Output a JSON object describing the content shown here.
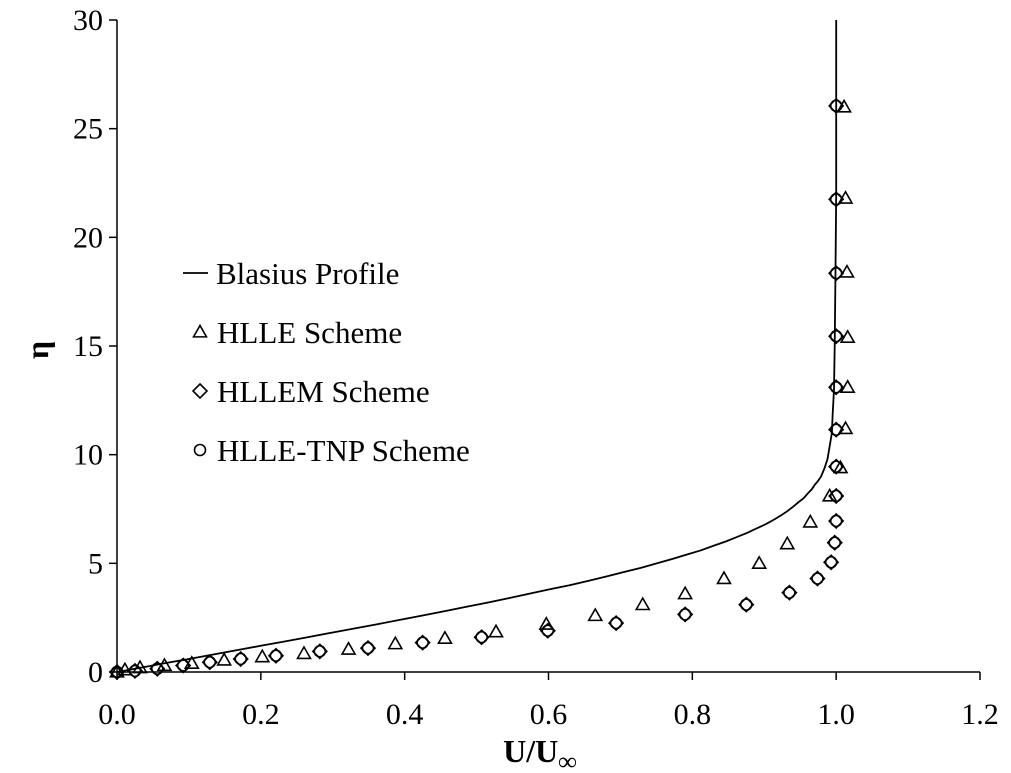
{
  "chart_data": {
    "type": "scatter",
    "title": "",
    "xlabel": "U/U",
    "xlabel_subscript": "∞",
    "ylabel": "η",
    "xlim": [
      0,
      1.2
    ],
    "ylim": [
      0,
      30
    ],
    "xticks": [
      0.0,
      0.2,
      0.4,
      0.6,
      0.8,
      1.0,
      1.2
    ],
    "yticks": [
      0,
      5,
      10,
      15,
      20,
      25,
      30
    ],
    "xtick_labels": [
      "0.0",
      "0.2",
      "0.4",
      "0.6",
      "0.8",
      "1.0",
      "1.2"
    ],
    "ytick_labels": [
      "0",
      "5",
      "10",
      "15",
      "20",
      "25",
      "30"
    ],
    "grid": false,
    "legend_position": "center-left",
    "series": [
      {
        "name": "Blasius Profile",
        "style": "line",
        "x": [
          0,
          0.033,
          0.066,
          0.1,
          0.133,
          0.166,
          0.199,
          0.232,
          0.265,
          0.297,
          0.33,
          0.362,
          0.394,
          0.425,
          0.456,
          0.486,
          0.516,
          0.545,
          0.573,
          0.601,
          0.63,
          0.656,
          0.681,
          0.705,
          0.729,
          0.751,
          0.772,
          0.792,
          0.812,
          0.829,
          0.846,
          0.861,
          0.876,
          0.889,
          0.902,
          0.913,
          0.923,
          0.932,
          0.94,
          0.947,
          0.955,
          0.96,
          0.966,
          0.97,
          0.975,
          0.979,
          0.984,
          0.988,
          0.991,
          0.994,
          0.995,
          0.997,
          0.998,
          0.999,
          1.0,
          1.0
        ],
        "y": [
          0,
          0.2,
          0.4,
          0.6,
          0.8,
          1.0,
          1.2,
          1.4,
          1.6,
          1.8,
          2.0,
          2.2,
          2.4,
          2.6,
          2.8,
          3.0,
          3.2,
          3.4,
          3.6,
          3.8,
          4.0,
          4.2,
          4.4,
          4.6,
          4.8,
          5.0,
          5.2,
          5.4,
          5.6,
          5.8,
          6.0,
          6.2,
          6.4,
          6.6,
          6.8,
          7.0,
          7.2,
          7.4,
          7.6,
          7.8,
          8.0,
          8.2,
          8.4,
          8.6,
          8.8,
          9.0,
          9.4,
          9.8,
          10.4,
          11.0,
          11.8,
          13.0,
          15.0,
          18.0,
          22.0,
          30.0
        ],
        "x_by_eta": true
      },
      {
        "name": "HLLE Scheme",
        "marker": "triangle",
        "x": [
          0.0,
          0.011,
          0.032,
          0.066,
          0.104,
          0.149,
          0.202,
          0.26,
          0.322,
          0.387,
          0.456,
          0.527,
          0.597,
          0.665,
          0.731,
          0.79,
          0.844,
          0.893,
          0.932,
          0.964,
          0.991,
          1.006,
          1.013,
          1.016,
          1.016,
          1.015,
          1.013,
          1.011
        ],
        "y": [
          0.0,
          0.1,
          0.2,
          0.3,
          0.4,
          0.55,
          0.7,
          0.85,
          1.05,
          1.3,
          1.55,
          1.85,
          2.2,
          2.6,
          3.1,
          3.6,
          4.3,
          5.0,
          5.9,
          6.9,
          8.1,
          9.4,
          11.2,
          13.1,
          15.4,
          18.4,
          21.8,
          26.0
        ]
      },
      {
        "name": "HLLEM Scheme",
        "marker": "diamond",
        "x": [
          0.0,
          0.025,
          0.056,
          0.092,
          0.129,
          0.172,
          0.221,
          0.282,
          0.349,
          0.425,
          0.507,
          0.599,
          0.694,
          0.79,
          0.875,
          0.935,
          0.974,
          0.993,
          0.998,
          1.0,
          1.0,
          1.0,
          1.0,
          1.0,
          1.0,
          1.0,
          1.0,
          1.0
        ],
        "y": [
          0.0,
          0.05,
          0.15,
          0.3,
          0.45,
          0.6,
          0.75,
          0.95,
          1.1,
          1.35,
          1.6,
          1.9,
          2.25,
          2.65,
          3.1,
          3.65,
          4.3,
          5.05,
          5.95,
          6.95,
          8.1,
          9.45,
          11.15,
          13.1,
          15.45,
          18.35,
          21.75,
          26.05
        ]
      },
      {
        "name": "HLLE-TNP Scheme",
        "marker": "circle",
        "x": [
          0.0,
          0.025,
          0.056,
          0.092,
          0.129,
          0.172,
          0.221,
          0.282,
          0.349,
          0.425,
          0.507,
          0.599,
          0.694,
          0.79,
          0.875,
          0.935,
          0.974,
          0.993,
          0.998,
          1.0,
          1.0,
          1.0,
          1.0,
          1.0,
          1.0,
          1.0,
          1.0,
          1.0
        ],
        "y": [
          0.0,
          0.05,
          0.15,
          0.3,
          0.45,
          0.6,
          0.75,
          0.95,
          1.1,
          1.35,
          1.6,
          1.9,
          2.25,
          2.65,
          3.1,
          3.65,
          4.3,
          5.05,
          5.95,
          6.95,
          8.1,
          9.45,
          11.15,
          13.1,
          15.45,
          18.35,
          21.75,
          26.05
        ]
      }
    ]
  }
}
